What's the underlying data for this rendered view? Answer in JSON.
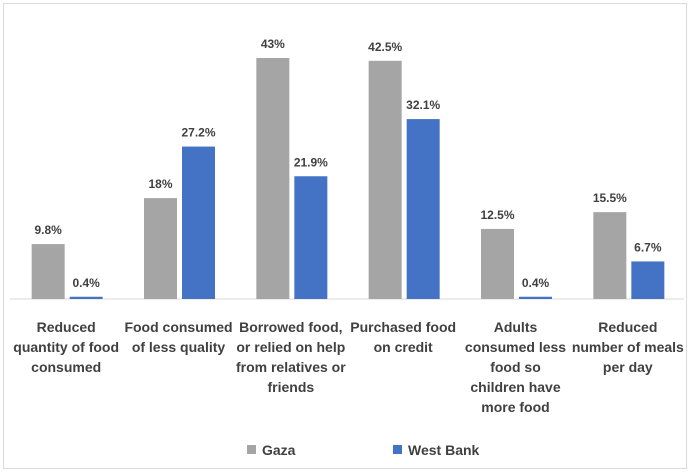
{
  "chart_data": {
    "type": "bar",
    "categories": [
      "Reduced quantity of food consumed",
      "Food consumed of less quality",
      "Borrowed food, or relied on help from relatives or friends",
      "Purchased food on credit",
      "Adults consumed less food so children have more food",
      "Reduced number of meals per day"
    ],
    "category_lines": [
      [
        "Reduced",
        "quantity of food",
        "consumed"
      ],
      [
        "Food consumed",
        "of less quality"
      ],
      [
        "Borrowed food,",
        "or relied on help",
        "from relatives or",
        "friends"
      ],
      [
        "Purchased food",
        "on credit"
      ],
      [
        "Adults",
        "consumed less",
        "food so",
        "children have",
        "more food"
      ],
      [
        "Reduced",
        "number of meals",
        "per day"
      ]
    ],
    "series": [
      {
        "name": "Gaza",
        "values": [
          9.8,
          18,
          43,
          42.5,
          12.5,
          15.5
        ],
        "labels": [
          "9.8%",
          "18%",
          "43%",
          "42.5%",
          "12.5%",
          "15.5%"
        ],
        "color": "#a5a5a5"
      },
      {
        "name": "West Bank",
        "values": [
          0.4,
          27.2,
          21.9,
          32.1,
          0.4,
          6.7
        ],
        "labels": [
          "0.4%",
          "27.2%",
          "21.9%",
          "32.1%",
          "0.4%",
          "6.7%"
        ],
        "color": "#4472c4"
      }
    ],
    "title": "",
    "xlabel": "",
    "ylabel": "",
    "ylim": [
      0,
      45
    ],
    "grid": false,
    "legend_position": "bottom"
  }
}
